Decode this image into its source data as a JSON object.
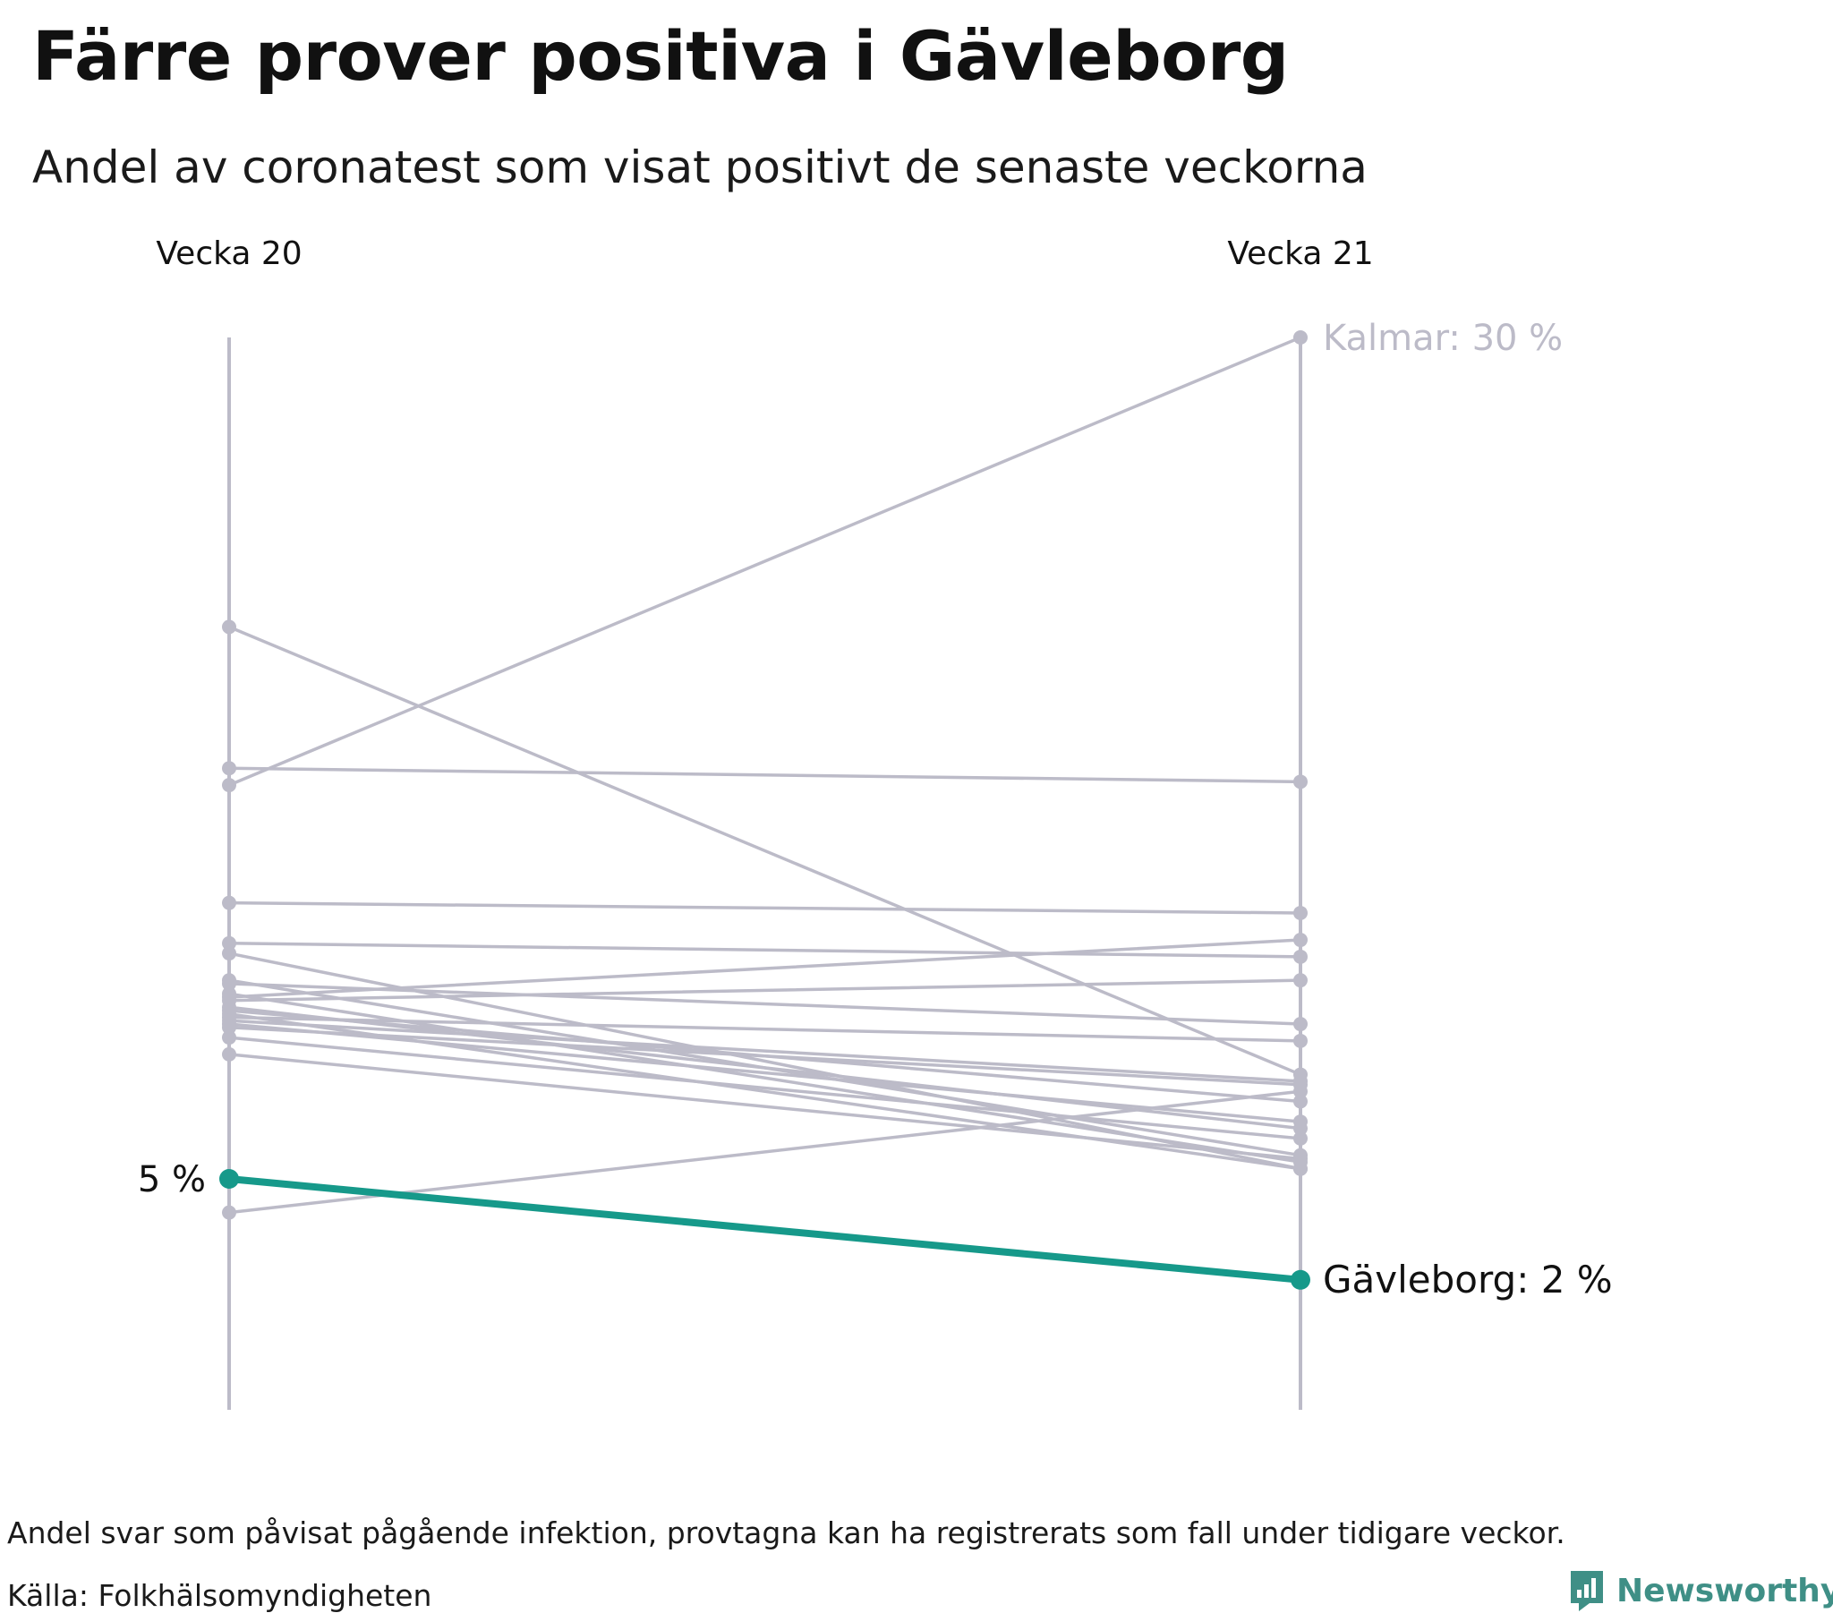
{
  "title": "Färre prover positiva i Gävleborg",
  "subtitle": "Andel av coronatest som visat positivt de senaste veckorna",
  "footnote": "Andel svar som påvisat pågående infektion, provtagna kan ha registrerats som fall under tidigare veckor.",
  "source": "Källa: Folkhälsomyndigheten",
  "logo": {
    "text": "Newsworthy",
    "icon": "bar-chart-bubble-icon"
  },
  "colors": {
    "highlight": "#16998a",
    "other": "#bcbbc8",
    "axis": "#bcbbc8",
    "logo": "#3f8f86"
  },
  "chart_data": {
    "type": "line",
    "chart_style": "slope",
    "categories": [
      "Vecka 20",
      "Vecka 21"
    ],
    "ylim": [
      0,
      30
    ],
    "grid": false,
    "legend": "none",
    "highlight": {
      "name": "Gävleborg",
      "values": [
        5,
        2
      ],
      "start_label": "5 %",
      "end_label": "Gävleborg: 2 %"
    },
    "annotated": {
      "name": "Kalmar",
      "values": [
        16.7,
        30
      ],
      "end_label": "Kalmar: 30 %"
    },
    "other_series": [
      {
        "values": [
          21.4,
          8.1
        ]
      },
      {
        "values": [
          17.2,
          16.8
        ]
      },
      {
        "values": [
          13.2,
          12.9
        ]
      },
      {
        "values": [
          12,
          11.6
        ]
      },
      {
        "values": [
          11.7,
          5.3
        ]
      },
      {
        "values": [
          10.9,
          5.7
        ]
      },
      {
        "values": [
          10.8,
          9.6
        ]
      },
      {
        "values": [
          10.5,
          5.5
        ]
      },
      {
        "values": [
          10.4,
          12.1
        ]
      },
      {
        "values": [
          10.3,
          10.9
        ]
      },
      {
        "values": [
          10.1,
          6.5
        ]
      },
      {
        "values": [
          10,
          7.3
        ]
      },
      {
        "values": [
          9.9,
          5.3
        ]
      },
      {
        "values": [
          9.8,
          9.1
        ]
      },
      {
        "values": [
          9.7,
          7.9
        ]
      },
      {
        "values": [
          9.6,
          6.7
        ]
      },
      {
        "values": [
          9.5,
          7.8
        ]
      },
      {
        "values": [
          9.2,
          6.2
        ]
      },
      {
        "values": [
          8.7,
          5.6
        ]
      },
      {
        "values": [
          4,
          7.6
        ]
      }
    ]
  }
}
